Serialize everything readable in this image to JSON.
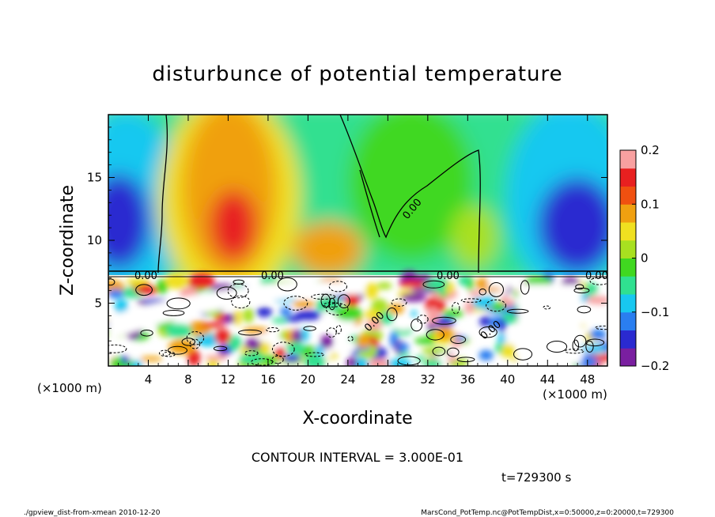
{
  "chart_data": {
    "type": "heatmap",
    "title": "disturbunce of potential temperature",
    "xlabel": "X-coordinate",
    "ylabel": "Z-coordinate",
    "x_unit": "(×1000 m)",
    "y_unit": "(×1000 m)",
    "x_ticks": [
      4,
      8,
      12,
      16,
      20,
      24,
      28,
      32,
      36,
      40,
      44,
      48
    ],
    "y_ticks": [
      5,
      10,
      15
    ],
    "xlim": [
      0,
      50
    ],
    "ylim": [
      0,
      20
    ],
    "contour_labels": [
      "0.00",
      "0.00",
      "0.00",
      "0.00",
      "0.00",
      "0.00",
      "0.00"
    ],
    "colorbar": {
      "ticks": [
        "0.2",
        "0.1",
        "0",
        "−0.1",
        "−0.2"
      ],
      "values": [
        0.2,
        0.1,
        0,
        -0.1,
        -0.2
      ],
      "range": [
        -0.2,
        0.2
      ]
    },
    "features": [
      {
        "x": 12.5,
        "z": 11,
        "value": 0.16
      },
      {
        "x": 13,
        "z": 15,
        "value": 0.08
      },
      {
        "x": 22,
        "z": 9,
        "value": 0.09
      },
      {
        "x": 4,
        "z": 12,
        "value": -0.15
      },
      {
        "x": 46,
        "z": 11,
        "value": -0.16
      },
      {
        "x": 30,
        "z": 15,
        "value": 0.0
      },
      {
        "x": 38,
        "z": 9,
        "value": 0.03
      }
    ],
    "contour_interval_text": "CONTOUR INTERVAL = 3.000E-01",
    "time_text": "t=729300 s"
  },
  "footer": {
    "left": "./gpview_dist-from-xmean  2010-12-20",
    "right": "MarsCond_PotTemp.nc@PotTempDist,x=0:50000,z=0:20000,t=729300"
  },
  "colors": {
    "scale": [
      "#7a1fa0",
      "#2a2ad0",
      "#2a7ef0",
      "#18c8f0",
      "#30e090",
      "#40d820",
      "#a8e020",
      "#f0e020",
      "#f0a010",
      "#f05010",
      "#e82020",
      "#f8a0a0"
    ]
  }
}
